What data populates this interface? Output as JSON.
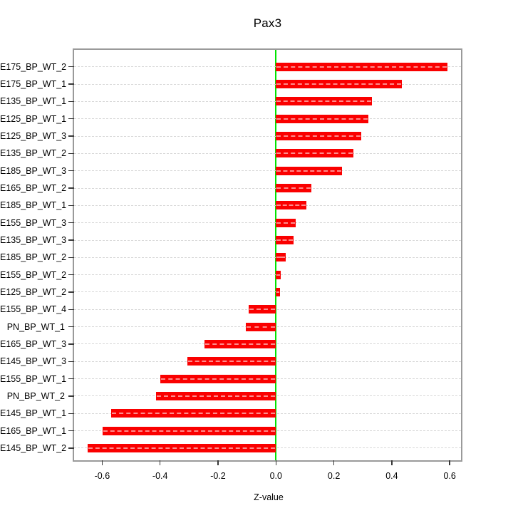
{
  "title": "Pax3",
  "xlabel": "Z-value",
  "colors": {
    "bar": "#fa0000",
    "bar_dash": "rgba(255,255,255,0.55)",
    "zero_line": "#00e400",
    "gridline": "#d8d8d8",
    "plot_border": "#9a9a9a",
    "tick": "#383838",
    "text": "#000000",
    "background": "#ffffff"
  },
  "chart_data": {
    "type": "bar",
    "orientation": "horizontal",
    "title": "Pax3",
    "xlabel": "Z-value",
    "ylabel": "",
    "grid": true,
    "zero_reference_line": 0.0,
    "xlim": [
      -0.7,
      0.64
    ],
    "x_ticks": [
      -0.6,
      -0.4,
      -0.2,
      0.0,
      0.2,
      0.4,
      0.6
    ],
    "x_tick_labels": [
      "-0.6",
      "-0.4",
      "-0.2",
      "0.0",
      "0.2",
      "0.4",
      "0.6"
    ],
    "categories": [
      "E175_BP_WT_2",
      "E175_BP_WT_1",
      "E135_BP_WT_1",
      "E125_BP_WT_1",
      "E125_BP_WT_3",
      "E135_BP_WT_2",
      "E185_BP_WT_3",
      "E165_BP_WT_2",
      "E185_BP_WT_1",
      "E155_BP_WT_3",
      "E135_BP_WT_3",
      "E185_BP_WT_2",
      "E155_BP_WT_2",
      "E125_BP_WT_2",
      "E155_BP_WT_4",
      "PN_BP_WT_1",
      "E165_BP_WT_3",
      "E145_BP_WT_3",
      "E155_BP_WT_1",
      "PN_BP_WT_2",
      "E145_BP_WT_1",
      "E165_BP_WT_1",
      "E145_BP_WT_2"
    ],
    "values": [
      0.593,
      0.434,
      0.332,
      0.318,
      0.294,
      0.267,
      0.228,
      0.122,
      0.106,
      0.069,
      0.062,
      0.034,
      0.016,
      0.013,
      -0.093,
      -0.103,
      -0.246,
      -0.305,
      -0.399,
      -0.414,
      -0.569,
      -0.599,
      -0.65
    ]
  }
}
